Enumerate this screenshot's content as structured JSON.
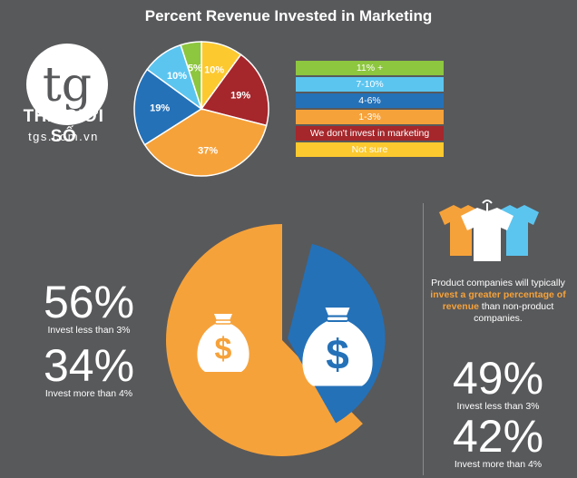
{
  "title": "Percent Revenue Invested in Marketing",
  "brand": {
    "monogram": "tg",
    "name": "THẾ GIỚI SỐ",
    "url": "tgs.com.vn"
  },
  "legend": [
    {
      "label": "11% +",
      "color": "#8dc63f"
    },
    {
      "label": "7-10%",
      "color": "#5bc5f0"
    },
    {
      "label": "4-6%",
      "color": "#2471b8"
    },
    {
      "label": "1-3%",
      "color": "#f6a23a"
    },
    {
      "label": "We don't invest in marketing",
      "color": "#a5262b"
    },
    {
      "label": "Not sure",
      "color": "#fcc92f"
    }
  ],
  "chart_data": [
    {
      "type": "pie",
      "title": "Percent Revenue Invested in Marketing",
      "categories": [
        "Not sure",
        "We don't invest in marketing",
        "1-3%",
        "4-6%",
        "7-10%",
        "11% +"
      ],
      "values": [
        10,
        19,
        37,
        19,
        10,
        5
      ],
      "labels": [
        "10%",
        "19%",
        "37%",
        "19%",
        "10%",
        "5%"
      ],
      "colors": [
        "#fcc92f",
        "#a5262b",
        "#f6a23a",
        "#2471b8",
        "#5bc5f0",
        "#8dc63f"
      ]
    },
    {
      "type": "pie",
      "categories": [
        "Invest less than 3%",
        "Invest more than 4%"
      ],
      "values": [
        56,
        34
      ],
      "colors": [
        "#f6a23a",
        "#2471b8"
      ]
    }
  ],
  "left_stats": [
    {
      "value": "56%",
      "caption": "Invest less than 3%"
    },
    {
      "value": "34%",
      "caption": "Invest more than 4%"
    }
  ],
  "right_note": {
    "pre": "Product companies will typically ",
    "highlight": "invest a greater percentage of revenue",
    "post": " than non-product companies."
  },
  "right_stats": [
    {
      "value": "49%",
      "caption": "Invest less than 3%"
    },
    {
      "value": "42%",
      "caption": "Invest more than 4%"
    }
  ],
  "icons": {
    "money_bag": "$"
  }
}
